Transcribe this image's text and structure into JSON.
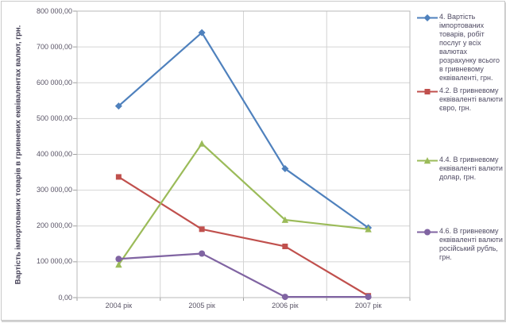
{
  "chart_data": {
    "type": "line",
    "title": "",
    "xlabel": "",
    "ylabel": "Вартість імпортованих товарів в гривневих еквівалентах валют, грн.",
    "categories": [
      "2004 рік",
      "2005 рік",
      "2006 рік",
      "2007 рік"
    ],
    "series": [
      {
        "name": "4. Вартість імпортованих товарів, робіт послуг у всіх валютах розрахунку всього в гривневому еквіваленті, грн.",
        "color": "#4F81BD",
        "marker": "diamond",
        "values": [
          535000,
          740000,
          360000,
          195000
        ]
      },
      {
        "name": "4.2. В гривневому еквіваленті валюти євро, грн.",
        "color": "#C0504D",
        "marker": "square",
        "values": [
          337000,
          191000,
          143000,
          5000
        ]
      },
      {
        "name": "4.4. В гривневому еквіваленті валюти долар, грн.",
        "color": "#9BBB59",
        "marker": "triangle",
        "values": [
          92000,
          430000,
          217000,
          191000
        ]
      },
      {
        "name": "4.6. В гривневому еквіваленті валюти російський рубль, грн.",
        "color": "#8064A2",
        "marker": "circle",
        "values": [
          108000,
          123000,
          2000,
          2000
        ]
      }
    ],
    "ylim": [
      0,
      800000
    ],
    "y_ticks": [
      "0,00",
      "100 000,00",
      "200 000,00",
      "300 000,00",
      "400 000,00",
      "500 000,00",
      "600 000,00",
      "700 000,00",
      "800 000,00"
    ],
    "grid": true,
    "legend_position": "right",
    "colors": {
      "gridline": "#d4d4d4",
      "axis_border": "#b9b9b9",
      "tick_mark": "#9e9e9e",
      "tick_text": "#595466",
      "axis_title_text": "#433f55"
    }
  }
}
